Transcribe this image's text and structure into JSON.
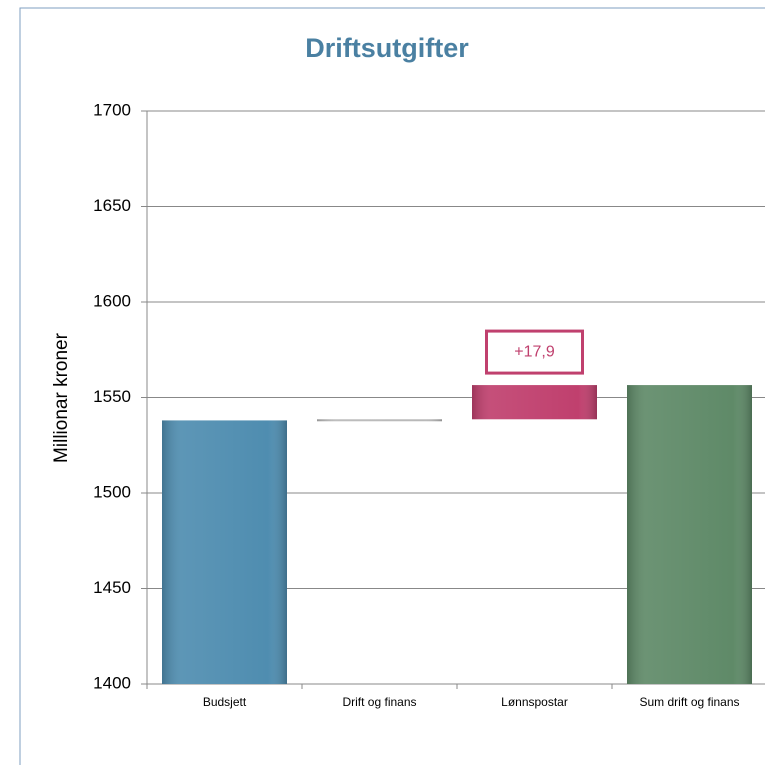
{
  "chart_data": {
    "type": "waterfall",
    "title": "Driftsutgifter",
    "ylabel": "Millionar kroner",
    "categories": [
      "Budsjett",
      "Drift og finans",
      "Lønnspostar",
      "Sum drift og finans"
    ],
    "values": [
      1538,
      0.6,
      17.9,
      1556.5
    ],
    "value_labels": [
      null,
      null,
      "+17,9",
      null
    ],
    "kinds": [
      "total",
      "delta",
      "delta",
      "total"
    ],
    "colors": [
      "#4f8db0",
      "#b8b8b8",
      "#c0406e",
      "#5f8a68"
    ],
    "ylim": [
      1400,
      1700
    ],
    "yticks": [
      1400,
      1450,
      1500,
      1550,
      1600,
      1650,
      1700
    ],
    "grid": true
  }
}
